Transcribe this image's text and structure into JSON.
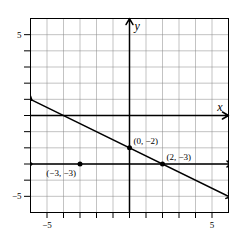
{
  "chart_data": {
    "type": "line",
    "x_label": "x",
    "y_label": "y",
    "xlim": [
      -6,
      6
    ],
    "ylim": [
      -6,
      6
    ],
    "xticks": [
      {
        "value": -5,
        "label": "−5"
      },
      {
        "value": -4,
        "label": null
      },
      {
        "value": -3,
        "label": null
      },
      {
        "value": -2,
        "label": null
      },
      {
        "value": -1,
        "label": null
      },
      {
        "value": 0,
        "label": null
      },
      {
        "value": 1,
        "label": null
      },
      {
        "value": 2,
        "label": null
      },
      {
        "value": 3,
        "label": null
      },
      {
        "value": 4,
        "label": null
      },
      5
    ],
    "yticks": [
      {
        "value": -5,
        "label": "−5"
      },
      {
        "value": -4,
        "label": null
      },
      {
        "value": -3,
        "label": null
      },
      {
        "value": -2,
        "label": null
      },
      {
        "value": -1,
        "label": null
      },
      {
        "value": 0,
        "label": null
      },
      {
        "value": 1,
        "label": null
      },
      {
        "value": 2,
        "label": null
      },
      {
        "value": 3,
        "label": null
      },
      {
        "value": 4,
        "label": null
      },
      5
    ],
    "grid": true,
    "series": [
      {
        "type": "line",
        "x": [
          -6,
          6
        ],
        "values": [
          1.0,
          -5.0
        ],
        "color": "black"
      },
      {
        "type": "line",
        "x": [
          -6,
          6
        ],
        "values": [
          -3,
          -3
        ],
        "color": "black"
      },
      {
        "type": "scatter",
        "x": [
          0,
          2,
          -3
        ],
        "values": [
          -2,
          -3,
          -3
        ],
        "labels": [
          "(0, −2)",
          "(2, −3)",
          "(−3, −3)"
        ],
        "color": "black"
      }
    ]
  }
}
